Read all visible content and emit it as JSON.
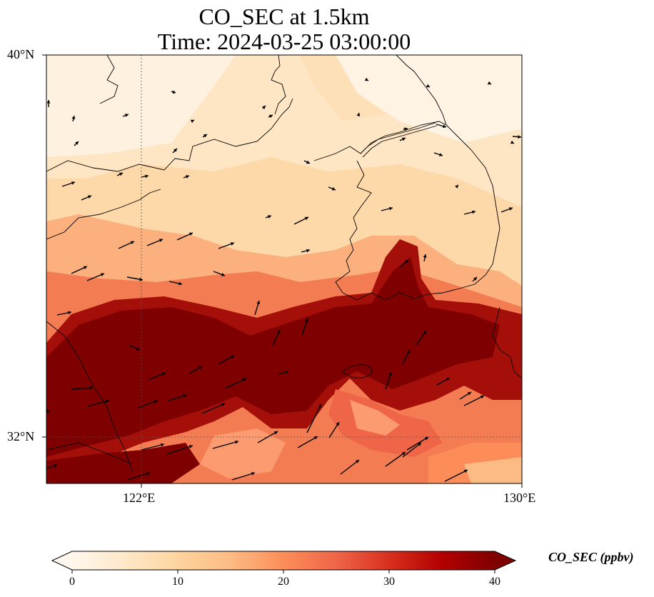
{
  "title_line1": "CO_SEC at 1.5km",
  "title_line2": "Time: 2024-03-25 03:00:00",
  "lat_labels": [
    "40°N",
    "32°N"
  ],
  "lon_labels": [
    "122°E",
    "130°E"
  ],
  "map_extent": {
    "lon": [
      120,
      130
    ],
    "lat": [
      31,
      40
    ]
  },
  "gridlines": {
    "lon": [
      122,
      130
    ],
    "lat": [
      32,
      40
    ],
    "style": "dotted"
  },
  "colorbar": {
    "label": "CO_SEC (ppbv)",
    "ticks": [
      "0",
      "10",
      "20",
      "30",
      "40"
    ],
    "range": [
      0,
      40
    ],
    "extend": "both",
    "colormap": "OrRd",
    "colors": [
      "#fff7ec",
      "#fee8c8",
      "#fdd49e",
      "#fdbb84",
      "#fc8d59",
      "#ef6548",
      "#d7301f",
      "#b30000",
      "#7f0000"
    ]
  }
}
